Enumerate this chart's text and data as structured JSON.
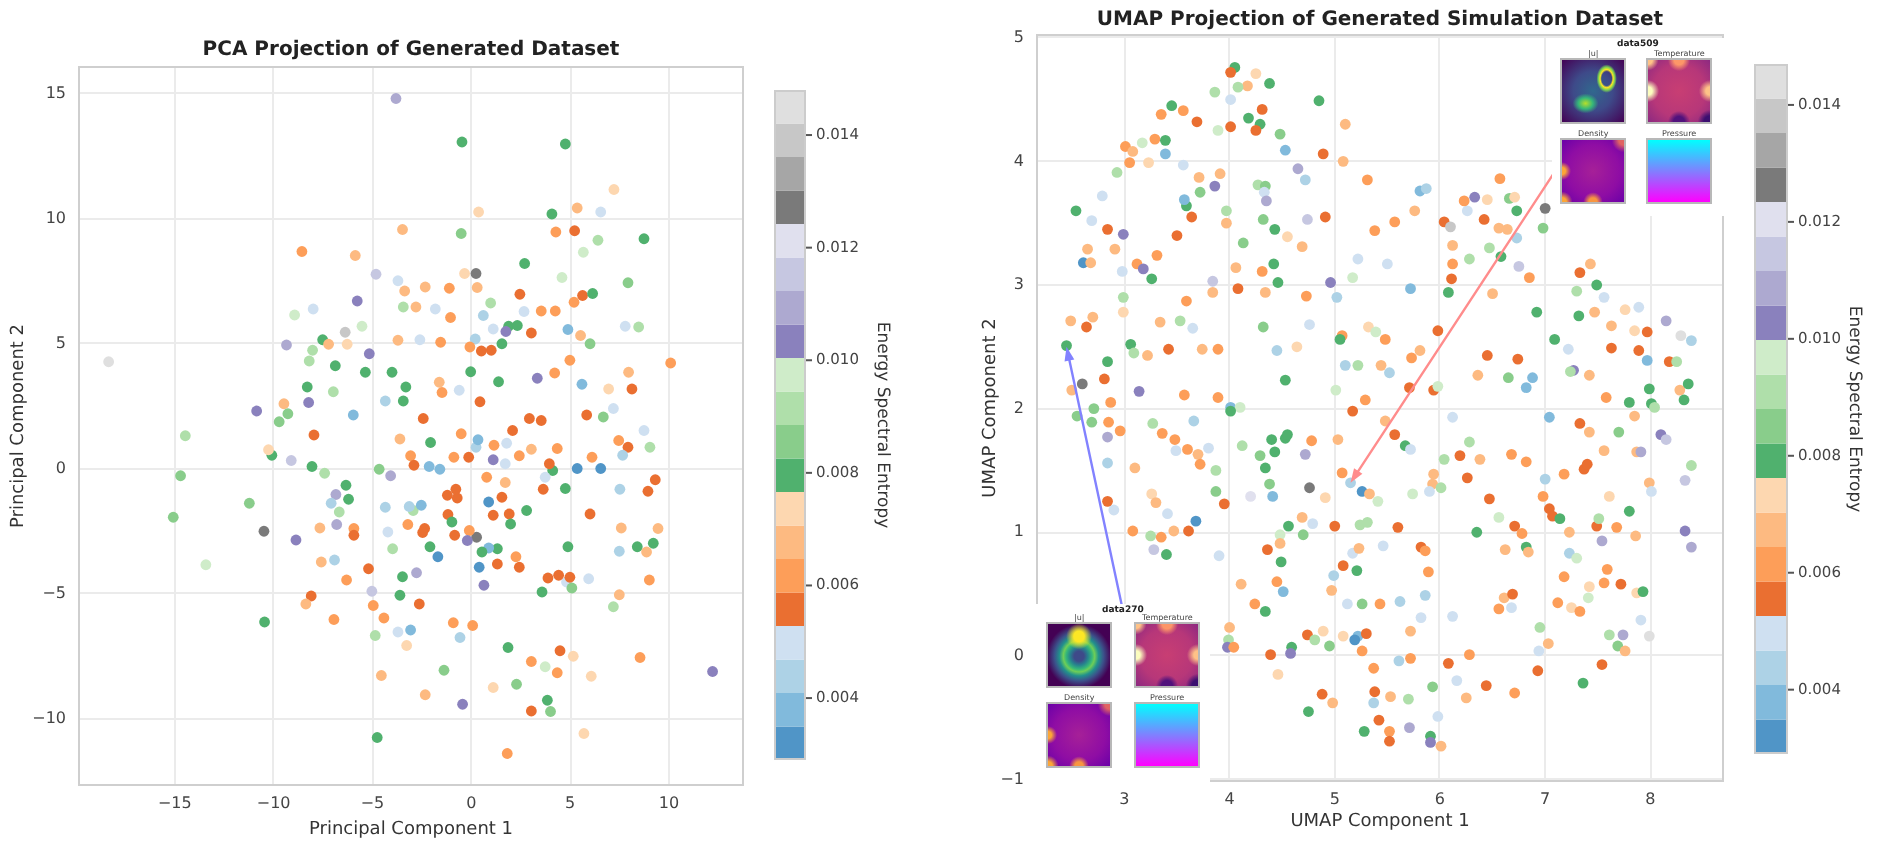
{
  "chart_data": [
    {
      "type": "scatter",
      "title": "PCA Projection of Generated Dataset",
      "xlabel": "Principal Component 1",
      "ylabel": "Principal Component 2",
      "clabel": "Energy Spectral Entropy",
      "x": [
        -3.81,
        -0.47,
        4.76,
        7.22,
        0.37,
        5.36,
        4.08,
        6.55,
        8.74,
        -3.48,
        -0.51,
        4.28,
        5.23,
        6.41,
        -8.57,
        -5.87,
        5.67,
        2.7,
        0.24,
        -0.34,
        -4.82,
        -3.71,
        4.59,
        7.93,
        -3.37,
        -2.33,
        -1.11,
        0.3,
        2.46,
        5.63,
        6.14,
        5.2,
        -5.77,
        0.98,
        -8.94,
        -3.44,
        -2.8,
        -1.82,
        -1.05,
        -8.0,
        0.61,
        2.67,
        3.54,
        4.25,
        1.89,
        2.33,
        4.89,
        7.79,
        8.47,
        1.11,
        1.75,
        3.04,
        -6.38,
        -5.53,
        -9.35,
        -7.52,
        -7.22,
        -6.28,
        -3.71,
        -2.6,
        -1.55,
        0.2,
        1.55,
        6.01,
        5.53,
        -0.07,
        0.51,
        1.01,
        -5.16,
        -8.03,
        -8.2,
        10.09,
        4.99,
        7.96,
        -6.88,
        -5.36,
        -4.01,
        -0.03,
        4.22,
        3.34,
        1.38,
        5.6,
        8.13,
        6.95,
        -8.3,
        -6.98,
        -3.31,
        -1.62,
        -0.61,
        -8.23,
        -10.86,
        -9.48,
        -4.35,
        -3.44,
        -1.48,
        6.68,
        7.19,
        5.84,
        3.54,
        0.44,
        -5.97,
        -9.28,
        -9.72,
        -18.35,
        -14.47,
        -14.71,
        -15.08,
        -11.23,
        -10.49,
        -13.43,
        -10.46,
        -8.87,
        -9.11,
        -10.09,
        -8.06,
        -7.42,
        -7.96,
        -10.26,
        -6.34,
        -6.21,
        -6.85,
        -7.09,
        -6.68,
        -7.66,
        -6.81,
        -7.59,
        -6.92,
        -8.1,
        -8.37,
        -6.95,
        -6.31,
        -5.94,
        -5.94,
        -5.2,
        -5.03,
        -4.96,
        -4.86,
        -4.55,
        -4.76,
        -4.42,
        -3.71,
        -3.27,
        -3.07,
        -2.63,
        -2.33,
        -1.38,
        -0.44,
        -0.91,
        -0.57,
        0.07,
        1.11,
        1.82,
        1.86,
        2.29,
        3.04,
        3.04,
        3.85,
        4.01,
        4.35,
        4.49,
        3.74,
        5.16,
        5.7,
        6.07,
        8.54,
        12.21,
        7.19,
        7.49,
        8.4,
        9.21,
        8.87,
        9.01,
        9.45,
        9.31,
        8.94,
        9.04,
        7.93,
        7.46,
        8.74,
        7.66,
        7.52,
        7.59,
        7.49,
        5.94,
        4.82,
        5.09,
        6.55,
        5.36,
        6.11,
        6.01,
        4.76,
        4.12,
        3.64,
        3.95,
        4.42,
        4.99,
        3.88,
        4.89,
        3.58,
        2.43,
        2.26,
        1.32,
        1.32,
        0.88,
        0.54,
        0.4,
        0.27,
        0.64,
        0.88,
        1.55,
        1.11,
        1.92,
        1.99,
        2.8,
        -0.71,
        -1.21,
        -0.78,
        -1.18,
        -0.98,
        -0.84,
        -0.1,
        -0.2,
        -2.09,
        -1.69,
        -3.21,
        -2.36,
        -2.46,
        -2.94,
        -2.53,
        -3.14,
        -4.35,
        -4.22,
        -3.98,
        -3.48,
        -2.77,
        -3.61,
        -4.08,
        -4.66,
        -3.07,
        -2.9,
        -2.13,
        -1.59,
        -2.06,
        -3.61,
        -2.43,
        -0.51,
        -0.88,
        -0.13,
        0.24,
        0.34,
        1.15,
        1.79,
        2.09,
        2.43,
        1.11,
        1.72,
        3.74,
        3.04,
        2.94,
        4.35,
        0.78,
        1.72
      ],
      "values": [
        14.8,
        13.06,
        12.98,
        11.16,
        10.26,
        10.42,
        10.18,
        10.26,
        9.19,
        9.56,
        9.4,
        9.46,
        9.51,
        9.13,
        8.68,
        8.52,
        8.65,
        8.2,
        7.8,
        7.8,
        7.77,
        7.51,
        7.64,
        7.43,
        7.1,
        7.26,
        7.21,
        7.24,
        6.97,
        6.92,
        7.0,
        6.65,
        6.7,
        6.62,
        6.14,
        6.46,
        6.46,
        6.38,
        6.04,
        6.38,
        6.12,
        6.28,
        6.3,
        6.3,
        5.69,
        5.72,
        5.56,
        5.69,
        5.66,
        5.58,
        5.48,
        5.42,
        5.45,
        5.69,
        4.94,
        5.15,
        4.97,
        4.97,
        5.13,
        5.15,
        5.05,
        5.18,
        4.99,
        4.99,
        5.32,
        4.86,
        4.7,
        4.73,
        4.59,
        4.73,
        4.3,
        4.22,
        4.33,
        3.85,
        4.11,
        3.85,
        3.85,
        3.87,
        3.82,
        3.61,
        3.47,
        3.37,
        3.18,
        3.18,
        3.26,
        3.07,
        3.26,
        3.45,
        3.13,
        2.64,
        2.3,
        2.59,
        2.7,
        2.7,
        3.04,
        2.06,
        2.4,
        2.14,
        1.92,
        2.67,
        2.14,
        2.19,
        1.87,
        4.27,
        1.31,
        -0.29,
        -1.95,
        -1.39,
        -2.51,
        -3.85,
        -6.14,
        -2.86,
        0.32,
        0.53,
        0.08,
        -0.19,
        1.34,
        0.75,
        -0.67,
        -1.23,
        -1.04,
        -1.39,
        -1.74,
        -2.38,
        -2.24,
        -3.74,
        -3.66,
        -5.1,
        -5.42,
        -6.04,
        -4.46,
        -2.4,
        -2.67,
        -4.01,
        -4.91,
        -5.48,
        -6.68,
        -8.28,
        -10.76,
        -5.98,
        -6.54,
        -7.08,
        -6.46,
        -5.42,
        -9.05,
        -8.07,
        -9.43,
        -6.17,
        -6.76,
        -6.28,
        -8.76,
        -11.4,
        -7.16,
        -8.63,
        -9.7,
        -7.72,
        -9.27,
        -9.72,
        -8.17,
        -7.29,
        -7.93,
        -7.51,
        -10.6,
        -8.31,
        -7.56,
        -8.12,
        -5.53,
        -5.05,
        -3.13,
        -2.99,
        -3.34,
        -4.46,
        -2.4,
        -0.45,
        -0.91,
        0.85,
        0.85,
        1.12,
        1.52,
        0.53,
        -0.83,
        -2.38,
        -3.31,
        -4.41,
        -4.54,
        -4.78,
        0.0,
        0.0,
        0.45,
        -1.82,
        -0.8,
        -0.08,
        -0.83,
        0.19,
        -4.27,
        -4.35,
        -4.38,
        -3.13,
        -4.94,
        -3.95,
        -3.53,
        -3.21,
        -3.82,
        -3.18,
        -3.34,
        -3.95,
        -2.75,
        -4.67,
        -1.34,
        -1.15,
        -1.87,
        -1.82,
        -2.22,
        -1.68,
        -1.18,
        -1.07,
        -0.83,
        -1.84,
        -2.14,
        -2.67,
        -2.48,
        -2.88,
        -3.13,
        -3.53,
        -2.24,
        -2.4,
        -2.56,
        -1.68,
        -1.47,
        -1.52,
        -1.55,
        -2.54,
        -3.21,
        -4.33,
        -4.17,
        -5.07,
        -0.29,
        -0.03,
        0.51,
        0.13,
        0.08,
        -0.03,
        1.04,
        1.18,
        2.0,
        1.39,
        0.45,
        0.45,
        0.85,
        1.15,
        0.93,
        1.01,
        1.52,
        0.51,
        0.35,
        0.19,
        -0.35,
        0.77,
        2.0,
        0.8,
        -0.35,
        -0.56
      ],
      "cvalues": [
        0.0109,
        0.008,
        0.008,
        0.0074,
        0.0074,
        0.0068,
        0.008,
        0.005,
        0.008,
        0.0068,
        0.0086,
        0.0062,
        0.0056,
        0.0092,
        0.0062,
        0.0068,
        0.0097,
        0.008,
        0.0127,
        0.0074,
        0.0115,
        0.005,
        0.0097,
        0.0086,
        0.0068,
        0.0068,
        0.0062,
        0.0068,
        0.0056,
        0.0056,
        0.008,
        0.0062,
        0.0103,
        0.0092,
        0.0097,
        0.0092,
        0.0068,
        0.005,
        0.0062,
        0.005,
        0.0044,
        0.005,
        0.0062,
        0.0062,
        0.008,
        0.008,
        0.0038,
        0.005,
        0.0092,
        0.005,
        0.0103,
        0.0056,
        0.0139,
        0.0097,
        0.0109,
        0.008,
        0.0068,
        0.0074,
        0.0068,
        0.005,
        0.0062,
        0.0044,
        0.008,
        0.0086,
        0.0068,
        0.0062,
        0.0056,
        0.0056,
        0.0103,
        0.0092,
        0.0092,
        0.0062,
        0.0062,
        0.0068,
        0.008,
        0.008,
        0.008,
        0.008,
        0.0062,
        0.0103,
        0.008,
        0.0038,
        0.0056,
        0.0074,
        0.008,
        0.0092,
        0.008,
        0.0068,
        0.005,
        0.0103,
        0.0103,
        0.0068,
        0.0044,
        0.008,
        0.0062,
        0.0086,
        0.005,
        0.0056,
        0.0056,
        0.0056,
        0.0038,
        0.0086,
        0.0086,
        0.0145,
        0.0092,
        0.0086,
        0.0086,
        0.0086,
        0.0127,
        0.0097,
        0.008,
        0.0103,
        0.0115,
        0.008,
        0.008,
        0.0092,
        0.0056,
        0.0074,
        0.008,
        0.008,
        0.0109,
        0.0044,
        0.0092,
        0.0068,
        0.0109,
        0.0068,
        0.0044,
        0.0056,
        0.0068,
        0.0062,
        0.0062,
        0.0062,
        0.0056,
        0.0056,
        0.0115,
        0.0062,
        0.0092,
        0.0068,
        0.008,
        0.0062,
        0.005,
        0.0074,
        0.0038,
        0.0056,
        0.0068,
        0.0086,
        0.0103,
        0.0062,
        0.0044,
        0.0062,
        0.0074,
        0.0062,
        0.008,
        0.0086,
        0.0056,
        0.0062,
        0.008,
        0.0086,
        0.0062,
        0.0056,
        0.0097,
        0.0074,
        0.0074,
        0.0074,
        0.0062,
        0.0103,
        0.0092,
        0.0068,
        0.008,
        0.008,
        0.0068,
        0.0062,
        0.0068,
        0.0056,
        0.0056,
        0.0092,
        0.0056,
        0.0062,
        0.005,
        0.0044,
        0.0044,
        0.0068,
        0.0044,
        0.005,
        0.005,
        0.0086,
        0.0032,
        0.0032,
        0.0062,
        0.0056,
        0.008,
        0.008,
        0.0056,
        0.0056,
        0.0056,
        0.0056,
        0.0056,
        0.008,
        0.008,
        0.0056,
        0.0062,
        0.008,
        0.0056,
        0.0038,
        0.008,
        0.0032,
        0.0127,
        0.0103,
        0.0032,
        0.0056,
        0.0056,
        0.0056,
        0.008,
        0.008,
        0.0056,
        0.0056,
        0.0056,
        0.0056,
        0.008,
        0.0056,
        0.0062,
        0.0103,
        0.008,
        0.0032,
        0.0062,
        0.0056,
        0.0056,
        0.0092,
        0.0038,
        0.0044,
        0.0044,
        0.005,
        0.0092,
        0.008,
        0.0109,
        0.008,
        0.0109,
        0.0086,
        0.0062,
        0.0056,
        0.0038,
        0.0038,
        0.008,
        0.0068,
        0.0056,
        0.0062,
        0.0062,
        0.0056,
        0.0044,
        0.0038,
        0.0062,
        0.005,
        0.0056,
        0.0062,
        0.0103,
        0.005,
        0.005,
        0.0068,
        0.0056,
        0.0062,
        0.0062,
        0.0068
      ],
      "xlim": [
        -19.9,
        13.8
      ],
      "ylim": [
        -12.7,
        16.1
      ],
      "xticks": [
        {
          "value": -15,
          "label": "−15"
        },
        {
          "value": -10,
          "label": "−10"
        },
        {
          "value": -5,
          "label": "−5"
        },
        0,
        5,
        10
      ],
      "yticks": [
        {
          "value": -10,
          "label": "−10"
        },
        {
          "value": -5,
          "label": "−5"
        },
        0,
        5,
        10,
        15
      ],
      "clim": [
        0.0029,
        0.0148
      ],
      "cticks": [
        0.004,
        0.006,
        0.008,
        {
          "value": 0.01,
          "label": "0.010"
        },
        0.012,
        0.014
      ],
      "grid": true,
      "marker": "circle"
    },
    {
      "type": "scatter",
      "title": "UMAP Projection of Generated Simulation Dataset",
      "xlabel": "UMAP Component 1",
      "ylabel": "UMAP Component 2",
      "clabel": "Energy Spectral Entropy",
      "x": [
        4.05,
        4.01,
        4.25,
        4.17,
        4.08,
        4.01,
        4.38,
        4.85,
        3.45,
        3.35,
        3.56,
        3.86,
        4.31,
        4.18,
        4.01,
        3.69,
        4.29,
        4.25,
        3.89,
        5.1,
        4.48,
        3.29,
        3.01,
        3.08,
        3.39,
        3.17,
        3.05,
        3.23,
        3.39,
        3.56,
        4.53,
        4.89,
        5.08,
        3.71,
        3.91,
        2.93,
        2.79,
        2.69,
        2.54,
        2.84,
        2.99,
        2.65,
        2.91,
        2.61,
        2.68,
        2.49,
        2.64,
        2.7,
        2.45,
        2.6,
        2.84,
        2.5,
        2.81,
        2.87,
        2.71,
        2.98,
        2.99,
        3.06,
        3.09,
        2.99,
        3.12,
        3.18,
        3.26,
        3.31,
        3.14,
        3.22,
        3.34,
        3.42,
        3.53,
        3.57,
        3.5,
        3.59,
        3.64,
        3.59,
        3.57,
        3.72,
        3.86,
        3.65,
        3.74,
        3.89,
        3.84,
        3.84,
        3.89,
        3.97,
        3.97,
        4.06,
        4.08,
        4.01,
        4.1,
        4.13,
        4.27,
        4.34,
        4.33,
        4.35,
        4.32,
        4.31,
        4.34,
        4.43,
        4.42,
        4.46,
        4.32,
        4.45,
        4.53,
        4.55,
        4.64,
        4.69,
        4.74,
        4.73,
        4.76,
        4.65,
        4.72,
        4.96,
        4.91,
        5.02,
        5.17,
        5.22,
        5.32,
        5.39,
        5.07,
        5.05,
        5.1,
        5.22,
        5.17,
        5.29,
        5.01,
        5.38,
        5.31,
        5.5,
        5.48,
        5.44,
        5.52,
        5.57,
        5.72,
        5.76,
        5.81,
        5.87,
        5.81,
        5.73,
        5.71,
        5.94,
        5.98,
        5.98,
        6.04,
        6.1,
        6.12,
        6.12,
        6.11,
        6.08,
        6.28,
        6.26,
        6.23,
        6.33,
        6.42,
        6.45,
        6.47,
        6.5,
        6.45,
        6.36,
        6.57,
        6.56,
        6.64,
        6.58,
        6.66,
        6.71,
        6.73,
        6.73,
        6.75,
        6.85,
        6.74,
        6.65,
        6.82,
        6.88,
        6.92,
        6.98,
        7.0,
        7.09,
        7.22,
        7.27,
        7.24,
        7.3,
        7.32,
        7.33,
        7.43,
        7.49,
        7.56,
        7.47,
        7.63,
        7.63,
        7.58,
        7.42,
        7.8,
        7.76,
        7.89,
        7.85,
        7.89,
        7.97,
        7.97,
        8.15,
        8.18,
        8.25,
        8.29,
        8.39,
        8.28,
        8.36,
        7.99,
        8.01,
        8.32,
        8.04,
        2.55,
        2.69,
        2.85,
        2.96,
        2.84,
        2.84,
        2.84,
        2.9,
        3.1,
        3.08,
        3.27,
        3.36,
        3.48,
        3.26,
        3.3,
        3.25,
        3.35,
        3.28,
        3.4,
        3.41,
        3.47,
        3.61,
        3.68,
        3.49,
        3.6,
        3.7,
        3.72,
        3.66,
        3.8,
        3.87,
        3.87,
        3.95,
        3.9,
        4.01,
        4.12,
        4.2,
        4.29,
        4.34,
        4.38,
        4.4,
        4.43,
        4.53,
        4.55,
        4.41,
        4.56,
        4.48,
        4.48,
        4.36,
        4.49,
        4.45,
        4.51,
        4.24,
        4.34,
        4.11,
        4.0,
        3.99,
        3.98,
        4.04,
        4.39,
        4.59,
        4.58,
        4.46,
        4.7,
        4.78,
        4.72,
        4.76,
        4.69,
        4.79,
        4.74,
        4.81,
        4.89,
        4.75,
        4.88,
        4.91,
        4.95,
        4.98,
        4.97,
        4.99,
        5.0,
        5.03,
        5.07,
        5.08,
        5.12,
        5.17,
        5.21,
        5.15,
        5.26,
        5.33,
        5.24,
        5.31,
        5.23,
        5.26,
        5.22,
        5.3,
        5.19,
        5.08,
        5.26,
        5.37,
        5.38,
        5.37,
        5.28,
        5.42,
        5.52,
        5.52,
        5.53,
        5.7,
        5.71,
        5.43,
        5.46,
        5.41,
        5.48,
        5.57,
        5.67,
        5.72,
        5.6,
        5.62,
        5.61,
        5.72,
        5.72,
        5.74,
        5.82,
        5.86,
        5.89,
        5.86,
        5.82,
        5.93,
        5.9,
        5.94,
        6.04,
        6.01,
        6.12,
        6.19,
        6.26,
        6.28,
        6.35,
        6.38,
        6.47,
        6.56,
        6.62,
        6.56,
        6.61,
        6.69,
        6.68,
        6.12,
        6.16,
        5.98,
        5.93,
        6.08,
        6.28,
        6.25,
        6.44,
        6.71,
        6.01,
        5.91,
        5.91,
        6.71,
        6.78,
        6.82,
        6.84,
        6.68,
        6.82,
        6.95,
        6.94,
        7.03,
        6.93,
        6.98,
        7.0,
        7.04,
        7.07,
        7.14,
        7.04,
        7.18,
        7.23,
        7.23,
        7.3,
        7.18,
        7.25,
        7.33,
        7.12,
        7.33,
        7.37,
        7.4,
        7.42,
        7.49,
        7.51,
        7.54,
        7.42,
        7.41,
        7.59,
        7.56,
        7.61,
        7.69,
        7.74,
        7.76,
        7.54,
        7.36,
        7.61,
        7.7,
        7.56,
        7.68,
        7.8,
        7.72,
        7.86,
        7.87,
        7.93,
        7.91,
        7.99,
        7.85,
        7.87,
        7.91,
        7.99,
        8.01,
        8.1,
        8.15,
        8.33,
        8.39,
        8.33,
        8.39
      ],
      "values": [
        4.76,
        4.72,
        4.71,
        4.61,
        4.6,
        4.5,
        4.63,
        4.49,
        4.45,
        4.38,
        4.41,
        4.56,
        4.42,
        4.35,
        4.28,
        4.32,
        4.3,
        4.25,
        4.25,
        4.3,
        4.22,
        4.18,
        4.12,
        4.08,
        4.17,
        4.15,
        3.99,
        3.99,
        4.06,
        3.97,
        4.09,
        4.06,
        4.0,
        3.87,
        3.9,
        3.91,
        3.72,
        3.52,
        3.6,
        3.45,
        3.41,
        3.29,
        3.29,
        3.18,
        3.18,
        2.71,
        2.66,
        2.74,
        2.51,
        2.2,
        2.38,
        2.15,
        2.24,
        2.05,
        2.0,
        3.11,
        2.9,
        2.52,
        2.45,
        2.78,
        3.17,
        3.13,
        3.05,
        3.24,
        2.14,
        2.43,
        2.7,
        2.48,
        2.71,
        2.11,
        3.4,
        2.87,
        3.55,
        3.64,
        3.69,
        3.75,
        3.8,
        2.65,
        2.48,
        2.48,
        3.03,
        2.94,
        2.09,
        3.6,
        3.5,
        3.14,
        2.97,
        2.01,
        2.01,
        3.34,
        3.81,
        3.8,
        3.75,
        3.68,
        3.53,
        3.11,
        2.94,
        3.45,
        3.17,
        3.02,
        2.66,
        2.47,
        2.23,
        3.39,
        2.5,
        3.31,
        3.53,
        2.91,
        2.68,
        3.94,
        3.85,
        3.02,
        3.55,
        2.9,
        3.06,
        3.21,
        2.66,
        2.62,
        2.59,
        2.56,
        2.35,
        2.35,
        1.98,
        2.07,
        2.15,
        3.44,
        3.85,
        3.17,
        2.56,
        2.35,
        2.29,
        3.51,
        2.97,
        3.6,
        3.76,
        3.78,
        2.47,
        2.41,
        2.17,
        2.15,
        2.18,
        2.63,
        3.51,
        3.47,
        3.32,
        3.17,
        3.05,
        2.94,
        3.21,
        3.6,
        3.68,
        3.71,
        3.53,
        3.69,
        3.3,
        2.93,
        2.43,
        2.27,
        3.86,
        3.46,
        3.45,
        3.23,
        3.7,
        3.71,
        3.6,
        3.38,
        3.15,
        3.06,
        2.4,
        2.25,
        2.17,
        2.25,
        2.78,
        3.46,
        3.62,
        2.56,
        2.48,
        2.31,
        2.3,
        2.95,
        2.75,
        3.1,
        3.17,
        3.0,
        2.9,
        2.78,
        2.67,
        2.49,
        2.09,
        2.27,
        2.05,
        2.8,
        2.82,
        2.63,
        2.47,
        2.39,
        2.62,
        2.71,
        2.38,
        2.38,
        2.59,
        2.55,
        2.15,
        2.2,
        2.16,
        2.04,
        2.07,
        2.01,
        1.94,
        1.89,
        1.89,
        1.82,
        1.77,
        1.56,
        1.25,
        1.18,
        1.52,
        1.01,
        1.88,
        1.8,
        1.75,
        1.31,
        1.24,
        0.97,
        0.96,
        0.86,
        0.82,
        1.15,
        1.01,
        1.01,
        1.09,
        1.66,
        1.67,
        1.63,
        1.55,
        1.9,
        1.68,
        1.5,
        1.33,
        1.23,
        0.81,
        1.98,
        1.7,
        1.29,
        1.62,
        1.52,
        1.39,
        1.75,
        1.65,
        1.76,
        1.79,
        1.29,
        1.05,
        0.98,
        0.91,
        0.86,
        0.76,
        0.6,
        0.52,
        0.42,
        0.36,
        0.58,
        0.23,
        0.13,
        0.07,
        0.07,
        0.01,
        0.07,
        0.02,
        -0.15,
        0.98,
        1.74,
        1.63,
        1.36,
        1.12,
        1.07,
        0.17,
        0.13,
        0.2,
        -0.45,
        -0.31,
        1.28,
        0.08,
        -0.38,
        0.53,
        0.65,
        1.05,
        1.75,
        1.48,
        0.73,
        0.42,
        0.83,
        0.69,
        1.4,
        1.33,
        1.31,
        1.06,
        1.08,
        0.87,
        0.42,
        0.16,
        0.18,
        0.13,
        0.16,
        0.04,
        -0.1,
        -0.29,
        -0.38,
        -0.61,
        -0.52,
        -0.61,
        -0.69,
        -0.33,
        -0.35,
        -0.58,
        0.42,
        0.89,
        1.25,
        1.9,
        1.79,
        1.7,
        1.67,
        1.04,
        0.44,
        -0.04,
        -0.02,
        0.2,
        1.31,
        0.88,
        0.85,
        0.68,
        0.49,
        0.31,
        1.39,
        1.33,
        1.47,
        1.59,
        1.36,
        1.93,
        1.62,
        1.44,
        1.73,
        1.0,
        1.59,
        1.27,
        1.12,
        0.86,
        0.38,
        0.47,
        0.5,
        0.39,
        0.32,
        -0.2,
        -0.49,
        -0.25,
        -0.06,
        0.01,
        -0.34,
        -0.24,
        -0.3,
        -0.73,
        -0.65,
        -0.7,
        1.05,
        0.99,
        0.88,
        0.84,
        1.63,
        1.57,
        0.23,
        0.04,
        0.1,
        -0.12,
        1.29,
        1.43,
        1.19,
        1.13,
        1.11,
        1.93,
        1.47,
        1.0,
        0.83,
        0.79,
        0.64,
        0.39,
        0.36,
        0.43,
        1.88,
        1.51,
        1.55,
        1.81,
        1.05,
        1.11,
        0.93,
        0.56,
        0.47,
        0.7,
        0.59,
        0.17,
        0.08,
        0.17,
        0.04,
        -0.07,
        -0.22,
        1.29,
        1.81,
        1.66,
        1.04,
        1.17,
        0.58,
        0.97,
        0.51,
        0.52,
        0.29,
        0.16,
        1.94,
        1.65,
        1.65,
        1.4,
        1.33,
        1.79,
        1.75,
        1.42,
        1.54,
        1.01,
        0.88
      ],
      "cvalues": [
        0.008,
        0.0056,
        0.0074,
        0.0068,
        0.0092,
        0.005,
        0.008,
        0.008,
        0.008,
        0.0062,
        0.0062,
        0.0092,
        0.0056,
        0.008,
        0.0056,
        0.0056,
        0.008,
        0.0056,
        0.0097,
        0.0068,
        0.0086,
        0.0062,
        0.0062,
        0.0068,
        0.008,
        0.0097,
        0.0062,
        0.0074,
        0.0038,
        0.005,
        0.0038,
        0.0056,
        0.0068,
        0.0068,
        0.0068,
        0.0092,
        0.005,
        0.005,
        0.008,
        0.0056,
        0.0103,
        0.0068,
        0.0068,
        0.0032,
        0.0068,
        0.0068,
        0.0056,
        0.0068,
        0.008,
        0.0127,
        0.008,
        0.0068,
        0.0056,
        0.0062,
        0.0086,
        0.005,
        0.0092,
        0.008,
        0.0092,
        0.0074,
        0.0062,
        0.0103,
        0.008,
        0.0062,
        0.0103,
        0.0068,
        0.0068,
        0.0056,
        0.0092,
        0.0062,
        0.0056,
        0.0062,
        0.0056,
        0.008,
        0.0038,
        0.0086,
        0.0103,
        0.005,
        0.0068,
        0.0062,
        0.0115,
        0.0068,
        0.0062,
        0.0092,
        0.0068,
        0.0068,
        0.0056,
        0.0038,
        0.0097,
        0.0086,
        0.0092,
        0.0086,
        0.005,
        0.0109,
        0.0086,
        0.0062,
        0.0068,
        0.008,
        0.008,
        0.008,
        0.0086,
        0.0044,
        0.008,
        0.0074,
        0.0074,
        0.0068,
        0.0115,
        0.0062,
        0.005,
        0.0109,
        0.0044,
        0.0103,
        0.0056,
        0.0044,
        0.0097,
        0.005,
        0.0074,
        0.0097,
        0.0062,
        0.008,
        0.0044,
        0.0092,
        0.0056,
        0.0062,
        0.0097,
        0.0062,
        0.0062,
        0.005,
        0.0062,
        0.0068,
        0.0044,
        0.0062,
        0.0038,
        0.0068,
        0.0038,
        0.0044,
        0.0068,
        0.0062,
        0.0056,
        0.0056,
        0.0097,
        0.0056,
        0.0056,
        0.0139,
        0.0068,
        0.0062,
        0.0056,
        0.008,
        0.0092,
        0.005,
        0.0062,
        0.0103,
        0.0056,
        0.0074,
        0.0092,
        0.0068,
        0.0056,
        0.0068,
        0.0062,
        0.0068,
        0.0068,
        0.008,
        0.0086,
        0.0074,
        0.008,
        0.0044,
        0.0115,
        0.0062,
        0.0056,
        0.0086,
        0.0038,
        0.0038,
        0.008,
        0.0086,
        0.0127,
        0.008,
        0.005,
        0.0103,
        0.0092,
        0.0092,
        0.008,
        0.0056,
        0.0068,
        0.008,
        0.005,
        0.0068,
        0.0068,
        0.0056,
        0.0062,
        0.0068,
        0.008,
        0.0074,
        0.005,
        0.0074,
        0.0056,
        0.0038,
        0.0056,
        0.0109,
        0.0056,
        0.0092,
        0.0145,
        0.0044,
        0.0068,
        0.008,
        0.008,
        0.008,
        0.008,
        0.0092,
        0.0086,
        0.0086,
        0.0062,
        0.0062,
        0.0109,
        0.0044,
        0.0056,
        0.005,
        0.0068,
        0.0062,
        0.0092,
        0.0062,
        0.0062,
        0.0074,
        0.0068,
        0.0092,
        0.0062,
        0.0115,
        0.008,
        0.005,
        0.0068,
        0.0056,
        0.0032,
        0.005,
        0.0062,
        0.0068,
        0.0062,
        0.0044,
        0.005,
        0.0092,
        0.0086,
        0.0056,
        0.005,
        0.008,
        0.0092,
        0.0121,
        0.0086,
        0.008,
        0.0086,
        0.008,
        0.008,
        0.008,
        0.008,
        0.0038,
        0.008,
        0.0097,
        0.0068,
        0.0056,
        0.008,
        0.0062,
        0.0038,
        0.0062,
        0.008,
        0.0068,
        0.0068,
        0.0092,
        0.0103,
        0.0062,
        0.0056,
        0.008,
        0.0103,
        0.0074,
        0.0086,
        0.0062,
        0.0109,
        0.0127,
        0.0068,
        0.005,
        0.0056,
        0.0092,
        0.0074,
        0.008,
        0.0056,
        0.0074,
        0.0086,
        0.0068,
        0.0068,
        0.0044,
        0.0056,
        0.0068,
        0.0062,
        0.0056,
        0.005,
        0.005,
        0.008,
        0.0044,
        0.0032,
        0.0068,
        0.0092,
        0.0092,
        0.0068,
        0.0086,
        0.0038,
        0.0056,
        0.0032,
        0.0074,
        0.0062,
        0.0062,
        0.0056,
        0.0044,
        0.008,
        0.0056,
        0.0062,
        0.0056,
        0.0068,
        0.0092,
        0.0109,
        0.0062,
        0.005,
        0.0097,
        0.0068,
        0.0056,
        0.008,
        0.005,
        0.0056,
        0.0044,
        0.0044,
        0.0062,
        0.0068,
        0.0097,
        0.0056,
        0.0062,
        0.0062,
        0.0044,
        0.005,
        0.0068,
        0.005,
        0.0068,
        0.0092,
        0.0092,
        0.005,
        0.0056,
        0.0056,
        0.0092,
        0.008,
        0.0068,
        0.0056,
        0.0097,
        0.0068,
        0.0062,
        0.0068,
        0.0056,
        0.005,
        0.005,
        0.005,
        0.005,
        0.0086,
        0.0056,
        0.0062,
        0.0068,
        0.0056,
        0.0062,
        0.0068,
        0.008,
        0.0103,
        0.0056,
        0.0062,
        0.008,
        0.0068,
        0.0062,
        0.0062,
        0.0092,
        0.005,
        0.0068,
        0.0056,
        0.0062,
        0.0044,
        0.0056,
        0.0056,
        0.008,
        0.0038,
        0.0062,
        0.0068,
        0.0044,
        0.0097,
        0.0062,
        0.0074,
        0.0062,
        0.0062,
        0.0056,
        0.0056,
        0.0056,
        0.0068,
        0.0056,
        0.0092,
        0.0109,
        0.0074,
        0.0097,
        0.0062,
        0.0062,
        0.0092,
        0.0086,
        0.0109,
        0.0068,
        0.0056,
        0.008,
        0.0074,
        0.0086,
        0.0068,
        0.0062,
        0.008,
        0.0056,
        0.0068,
        0.0074,
        0.008,
        0.005,
        0.0145,
        0.0068,
        0.0068,
        0.0109,
        0.0068,
        0.005,
        0.0103,
        0.0115,
        0.0115,
        0.0092,
        0.0103,
        0.0109
      ],
      "xlim": [
        2.16,
        8.7
      ],
      "ylim": [
        -1.02,
        5.03
      ],
      "xticks": [
        3,
        4,
        5,
        6,
        7,
        8
      ],
      "yticks": [
        {
          "value": -1,
          "label": "−1"
        },
        0,
        1,
        2,
        3,
        4,
        5
      ],
      "clim": [
        0.0029,
        0.0147
      ],
      "cticks": [
        0.004,
        0.006,
        0.008,
        {
          "value": 0.01,
          "label": "0.010"
        },
        0.012,
        0.014
      ],
      "annotations": [
        {
          "text": "data509",
          "x": 5.15,
          "y": 1.4
        },
        "|u|",
        "Temperature",
        "Density",
        "Pressure",
        {
          "text": "data270",
          "x": 2.45,
          "y": 2.5
        },
        "|u|",
        "Temperature",
        "Density",
        "Pressure"
      ],
      "grid": true,
      "marker": "circle"
    }
  ]
}
